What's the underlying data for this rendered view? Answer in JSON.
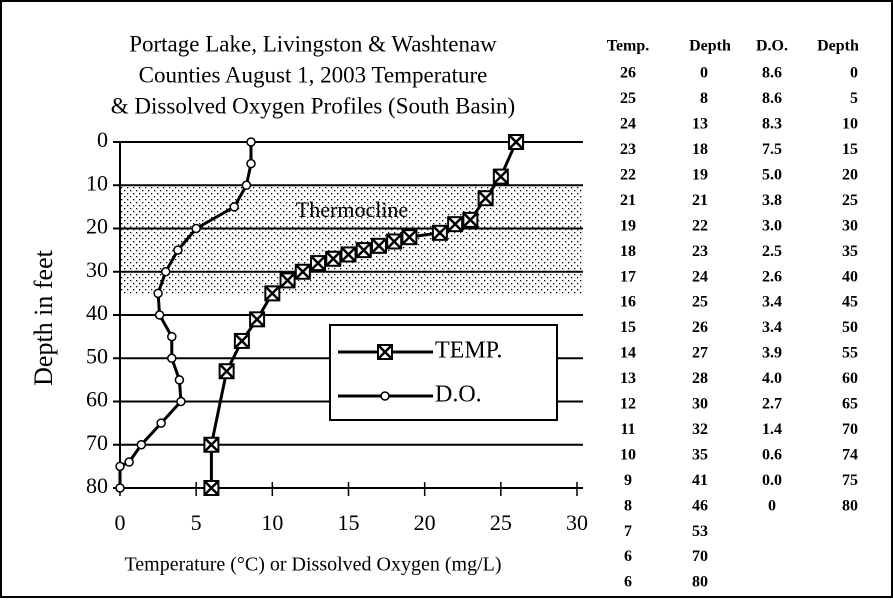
{
  "chart_data": {
    "type": "line",
    "title_lines": [
      "Portage Lake, Livingston & Washtenaw",
      "Counties August 1, 2003 Temperature",
      "& Dissolved Oxygen Profiles (South Basin)"
    ],
    "xlabel": "Temperature (°C) or Dissolved Oxygen (mg/L)",
    "ylabel": "Depth in feet",
    "xlim": [
      0,
      30
    ],
    "xticks": [
      0,
      5,
      10,
      15,
      20,
      25,
      30
    ],
    "ylim": [
      80,
      0
    ],
    "yticks": [
      0,
      10,
      20,
      30,
      40,
      50,
      60,
      70,
      80
    ],
    "grid": true,
    "legend": "center-right",
    "shaded_band": {
      "label": "Thermocline",
      "ylim": [
        10,
        35
      ]
    },
    "series": [
      {
        "name": "TEMP.",
        "color": "#000000",
        "marker": "x-square",
        "x": [
          26,
          25,
          24,
          23,
          22,
          21,
          19,
          18,
          17,
          16,
          15,
          14,
          13,
          12,
          11,
          10,
          9,
          8,
          7,
          6,
          6
        ],
        "y": [
          0,
          8,
          13,
          18,
          19,
          21,
          22,
          23,
          24,
          25,
          26,
          27,
          28,
          30,
          32,
          35,
          41,
          46,
          53,
          70,
          80
        ]
      },
      {
        "name": "D.O.",
        "color": "#000000",
        "marker": "circle",
        "x": [
          8.6,
          8.6,
          8.3,
          7.5,
          5.0,
          3.8,
          3.0,
          2.5,
          2.6,
          3.4,
          3.4,
          3.9,
          4.0,
          2.7,
          1.4,
          0.6,
          0.0,
          0
        ],
        "y": [
          0,
          5,
          10,
          15,
          20,
          25,
          30,
          35,
          40,
          45,
          50,
          55,
          60,
          65,
          70,
          74,
          75,
          80
        ]
      }
    ]
  },
  "table": {
    "columns": [
      {
        "header": "Temp.",
        "cells": [
          "26",
          "25",
          "24",
          "23",
          "22",
          "21",
          "19",
          "18",
          "17",
          "16",
          "15",
          "14",
          "13",
          "12",
          "11",
          "10",
          "9",
          "8",
          "7",
          "6",
          "6"
        ]
      },
      {
        "header": "Depth",
        "cells": [
          "0",
          "8",
          "13",
          "18",
          "19",
          "21",
          "22",
          "23",
          "24",
          "25",
          "26",
          "27",
          "28",
          "30",
          "32",
          "35",
          "41",
          "46",
          "53",
          "70",
          "80"
        ]
      },
      {
        "header": "D.O.",
        "cells": [
          "8.6",
          "8.6",
          "8.3",
          "7.5",
          "5.0",
          "3.8",
          "3.0",
          "2.5",
          "2.6",
          "3.4",
          "3.4",
          "3.9",
          "4.0",
          "2.7",
          "1.4",
          "0.6",
          "0.0",
          "0"
        ]
      },
      {
        "header": "Depth",
        "cells": [
          "0",
          "5",
          "10",
          "15",
          "20",
          "25",
          "30",
          "35",
          "40",
          "45",
          "50",
          "55",
          "60",
          "65",
          "70",
          "74",
          "75",
          "80"
        ]
      }
    ]
  }
}
